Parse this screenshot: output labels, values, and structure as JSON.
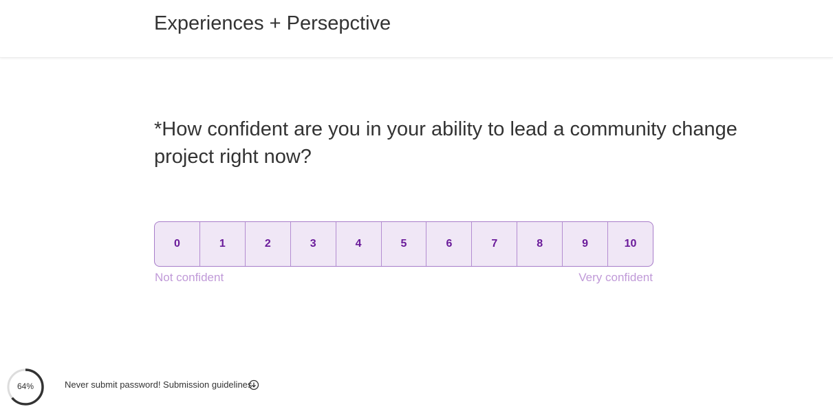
{
  "header": {
    "title": "Experiences + Persepctive"
  },
  "question": {
    "text": "*How confident are you in your ability to lead a community change project right now?",
    "options": [
      "0",
      "1",
      "2",
      "3",
      "4",
      "5",
      "6",
      "7",
      "8",
      "9",
      "10"
    ],
    "low_label": "Not confident",
    "high_label": "Very confident"
  },
  "footer": {
    "progress": {
      "value": 64,
      "label": "64%"
    },
    "notice": "Never submit password! Submission guidelines"
  }
}
